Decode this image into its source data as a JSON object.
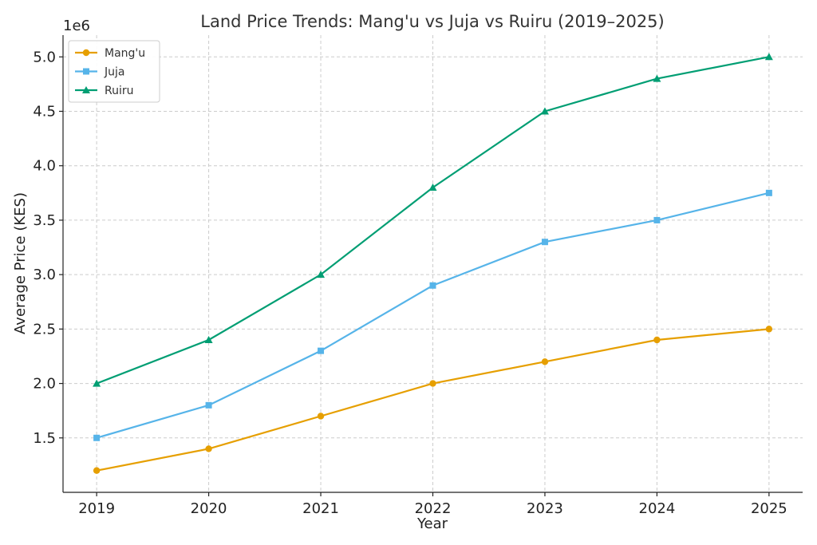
{
  "chart_data": {
    "type": "line",
    "title": "Land Price Trends: Mang'u vs Juja vs Ruiru (2019–2025)",
    "xlabel": "Year",
    "ylabel": "Average Price (KES)",
    "y_offset_label": "1e6",
    "x": [
      "2019",
      "2020",
      "2021",
      "2022",
      "2023",
      "2024",
      "2025"
    ],
    "xlim": [
      2018.7,
      2025.3
    ],
    "ylim": [
      1.0,
      5.2
    ],
    "yticks": [
      1.5,
      2.0,
      2.5,
      3.0,
      3.5,
      4.0,
      4.5,
      5.0
    ],
    "ytick_labels": [
      "1.5",
      "2.0",
      "2.5",
      "3.0",
      "3.5",
      "4.0",
      "4.5",
      "5.0"
    ],
    "grid": true,
    "legend_position": "top-left",
    "series": [
      {
        "name": "Mang'u",
        "color": "#E69F00",
        "marker": "circle",
        "values": [
          1.2,
          1.4,
          1.7,
          2.0,
          2.2,
          2.4,
          2.5
        ]
      },
      {
        "name": "Juja",
        "color": "#56B4E9",
        "marker": "square",
        "values": [
          1.5,
          1.8,
          2.3,
          2.9,
          3.3,
          3.5,
          3.75
        ]
      },
      {
        "name": "Ruiru",
        "color": "#009E73",
        "marker": "triangle",
        "values": [
          2.0,
          2.4,
          3.0,
          3.8,
          4.5,
          4.8,
          5.0
        ]
      }
    ]
  }
}
